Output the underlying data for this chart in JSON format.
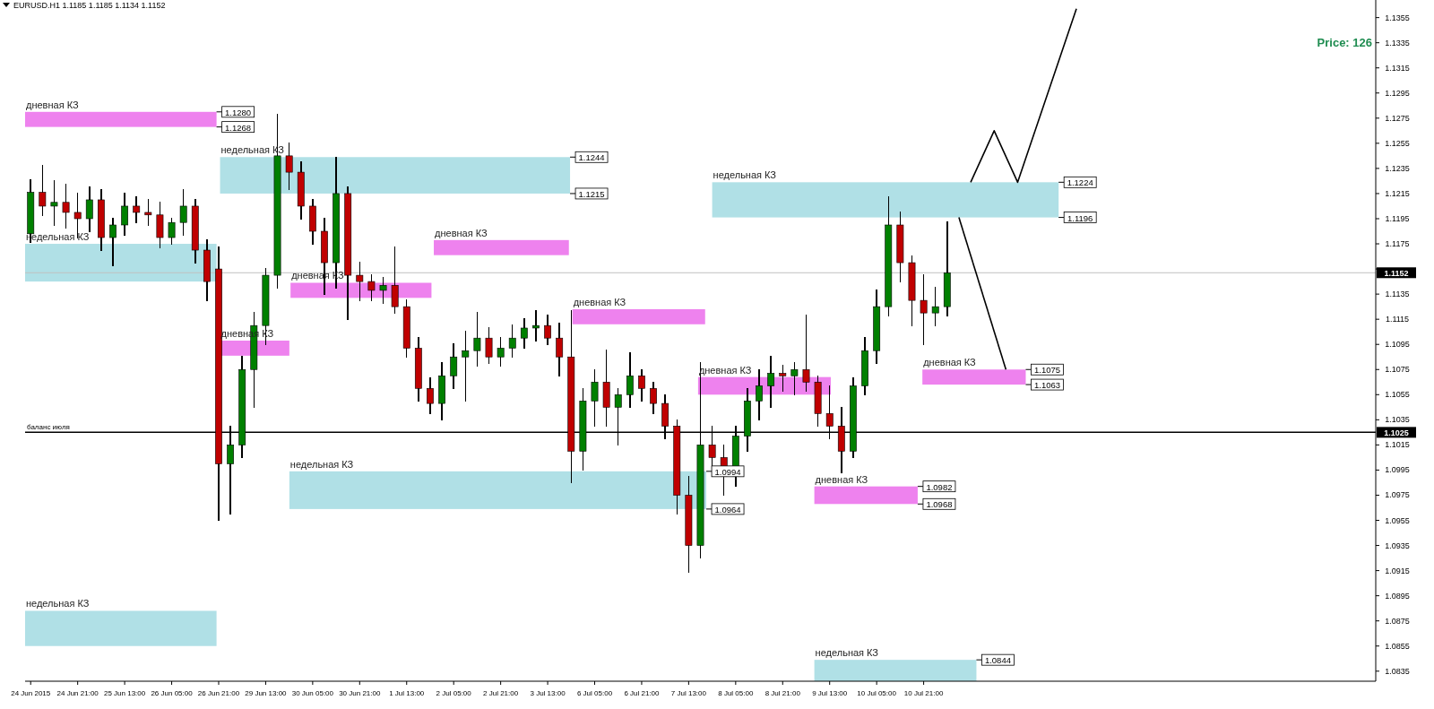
{
  "chart_data": {
    "type": "candlestick",
    "title": "EURUSD.H1 1.1185 1.1185 1.1134 1.1152",
    "annotations": [
      "Price: 126",
      "1.1152",
      "1.1025",
      "1.1280",
      "1.1268",
      "1.1244",
      "1.1215",
      "1.0994",
      "1.0964",
      "1.1224",
      "1.1196",
      "1.0982",
      "1.0968",
      "1.1075",
      "1.1063",
      "1.0844"
    ],
    "categories": [
      "24 Jun 2015",
      null,
      null,
      null,
      "24 Jun 21:00",
      null,
      null,
      null,
      "25 Jun 13:00",
      null,
      null,
      null,
      "26 Jun 05:00",
      null,
      null,
      null,
      "26 Jun 21:00",
      null,
      null,
      null,
      "29 Jun 13:00",
      null,
      null,
      null,
      "30 Jun 05:00",
      null,
      null,
      null,
      "30 Jun 21:00",
      null,
      null,
      null,
      "1 Jul 13:00",
      null,
      null,
      null,
      "2 Jul 05:00",
      null,
      null,
      null,
      "2 Jul 21:00",
      null,
      null,
      null,
      "3 Jul 13:00",
      null,
      null,
      null,
      "6 Jul 05:00",
      null,
      null,
      null,
      "6 Jul 21:00",
      null,
      null,
      null,
      "7 Jul 13:00",
      null,
      null,
      null,
      "8 Jul 05:00",
      null,
      null,
      null,
      "8 Jul 21:00",
      null,
      null,
      null,
      "9 Jul 13:00",
      null,
      null,
      null,
      "10 Jul 05:00",
      null,
      null,
      null,
      "10 Jul 21:00",
      null,
      null,
      null,
      null,
      null,
      null,
      null,
      null,
      null,
      null,
      null,
      null,
      null,
      null,
      null,
      null,
      null,
      null,
      null,
      null,
      null,
      null,
      null,
      null,
      null,
      null,
      null,
      null,
      null,
      null,
      null,
      null,
      null,
      null,
      null,
      null,
      null,
      null
    ],
    "colors": [
      "#008000",
      "#c00000",
      "#008000",
      "#c00000",
      "#c00000",
      "#008000",
      "#c00000",
      "#008000",
      "#008000",
      "#c00000",
      "#c00000",
      "#c00000",
      "#008000",
      "#008000",
      "#c00000",
      "#c00000",
      "#c00000",
      "#008000",
      "#008000",
      "#008000",
      "#008000",
      "#008000",
      "#c00000",
      "#c00000",
      "#c00000",
      "#c00000",
      "#008000",
      "#c00000",
      "#c00000",
      "#c00000",
      "#008000",
      "#c00000",
      "#c00000",
      "#c00000",
      "#c00000",
      "#008000",
      "#008000",
      "#008000",
      "#008000",
      "#c00000",
      "#008000",
      "#008000",
      "#008000",
      "#008000",
      "#c00000",
      "#c00000",
      "#c00000",
      "#008000",
      "#008000",
      "#c00000",
      "#008000",
      "#008000",
      "#c00000",
      "#c00000",
      "#c00000",
      "#c00000",
      "#c00000",
      "#008000",
      "#c00000",
      "#c00000",
      "#008000",
      "#008000",
      "#008000",
      "#008000",
      "#c00000",
      "#008000",
      "#c00000",
      "#c00000",
      "#c00000",
      "#c00000",
      "#008000",
      "#008000",
      "#008000",
      "#008000",
      "#c00000",
      "#c00000",
      "#c00000",
      "#008000",
      "#008000",
      null,
      null,
      null,
      null,
      null,
      null,
      null,
      null,
      null,
      null,
      null,
      null,
      null,
      null,
      null,
      null,
      null,
      null,
      null,
      null,
      null,
      null,
      null,
      null,
      null,
      null,
      null,
      null,
      null,
      null,
      null,
      null,
      null,
      null,
      null,
      null
    ],
    "ohlc": [
      [
        1.1183,
        1.1226,
        1.1176,
        1.1216
      ],
      [
        1.1216,
        1.1237,
        1.1198,
        1.1205
      ],
      [
        1.1205,
        1.1225,
        1.119,
        1.1208
      ],
      [
        1.1208,
        1.1222,
        1.1188,
        1.12
      ],
      [
        1.12,
        1.1215,
        1.118,
        1.1195
      ],
      [
        1.1195,
        1.122,
        1.1185,
        1.121
      ],
      [
        1.121,
        1.1218,
        1.117,
        1.118
      ],
      [
        1.118,
        1.1195,
        1.1158,
        1.119
      ],
      [
        1.119,
        1.1215,
        1.1182,
        1.1205
      ],
      [
        1.1205,
        1.1212,
        1.1192,
        1.12
      ],
      [
        1.12,
        1.121,
        1.119,
        1.1198
      ],
      [
        1.1198,
        1.1208,
        1.1172,
        1.118
      ],
      [
        1.118,
        1.1195,
        1.1175,
        1.1192
      ],
      [
        1.1192,
        1.1218,
        1.1182,
        1.1205
      ],
      [
        1.1205,
        1.121,
        1.116,
        1.117
      ],
      [
        1.117,
        1.1178,
        1.113,
        1.1145
      ],
      [
        1.1155,
        1.1172,
        1.0955,
        1.1
      ],
      [
        1.1,
        1.103,
        1.096,
        1.1015
      ],
      [
        1.1015,
        1.1085,
        1.1005,
        1.1075
      ],
      [
        1.1075,
        1.112,
        1.1045,
        1.111
      ],
      [
        1.111,
        1.1155,
        1.1095,
        1.115
      ],
      [
        1.115,
        1.1278,
        1.114,
        1.1245
      ],
      [
        1.1245,
        1.1255,
        1.1218,
        1.1232
      ],
      [
        1.1232,
        1.124,
        1.1195,
        1.1205
      ],
      [
        1.1205,
        1.121,
        1.1175,
        1.1185
      ],
      [
        1.1185,
        1.1195,
        1.1135,
        1.116
      ],
      [
        1.116,
        1.1244,
        1.114,
        1.1215
      ],
      [
        1.1215,
        1.122,
        1.1115,
        1.115
      ],
      [
        1.115,
        1.116,
        1.113,
        1.1145
      ],
      [
        1.1145,
        1.115,
        1.113,
        1.1138
      ],
      [
        1.1138,
        1.1148,
        1.1128,
        1.1142
      ],
      [
        1.1142,
        1.1172,
        1.112,
        1.1125
      ],
      [
        1.1125,
        1.113,
        1.1085,
        1.1092
      ],
      [
        1.1092,
        1.11,
        1.105,
        1.106
      ],
      [
        1.106,
        1.1068,
        1.104,
        1.1048
      ],
      [
        1.1048,
        1.108,
        1.1035,
        1.107
      ],
      [
        1.107,
        1.1095,
        1.106,
        1.1085
      ],
      [
        1.1085,
        1.1105,
        1.105,
        1.109
      ],
      [
        1.109,
        1.112,
        1.1078,
        1.11
      ],
      [
        1.11,
        1.1108,
        1.108,
        1.1085
      ],
      [
        1.1085,
        1.11,
        1.1078,
        1.1092
      ],
      [
        1.1092,
        1.111,
        1.1085,
        1.11
      ],
      [
        1.11,
        1.1115,
        1.1092,
        1.1108
      ],
      [
        1.1108,
        1.1122,
        1.1098,
        1.111
      ],
      [
        1.111,
        1.1118,
        1.1095,
        1.11
      ],
      [
        1.11,
        1.1112,
        1.107,
        1.1085
      ],
      [
        1.1085,
        1.1122,
        1.0985,
        1.101
      ],
      [
        1.101,
        1.106,
        1.0995,
        1.105
      ],
      [
        1.105,
        1.1075,
        1.103,
        1.1065
      ],
      [
        1.1065,
        1.109,
        1.103,
        1.1045
      ],
      [
        1.1045,
        1.106,
        1.1015,
        1.1055
      ],
      [
        1.1055,
        1.1088,
        1.1045,
        1.107
      ],
      [
        1.107,
        1.1075,
        1.105,
        1.106
      ],
      [
        1.106,
        1.1065,
        1.104,
        1.1048
      ],
      [
        1.1048,
        1.1055,
        1.102,
        1.103
      ],
      [
        1.103,
        1.1035,
        1.096,
        1.0975
      ],
      [
        1.0975,
        1.099,
        1.0914,
        1.0935
      ],
      [
        1.0935,
        1.108,
        1.0925,
        1.1015
      ],
      [
        1.1015,
        1.103,
        1.099,
        1.1005
      ],
      [
        1.1005,
        1.1015,
        1.0975,
        1.099
      ],
      [
        1.099,
        1.103,
        1.0982,
        1.1022
      ],
      [
        1.1022,
        1.106,
        1.101,
        1.105
      ],
      [
        1.105,
        1.1075,
        1.1035,
        1.1062
      ],
      [
        1.1062,
        1.1085,
        1.1045,
        1.1072
      ],
      [
        1.1072,
        1.1078,
        1.1058,
        1.107
      ],
      [
        1.107,
        1.108,
        1.1055,
        1.1075
      ],
      [
        1.1075,
        1.1118,
        1.1058,
        1.1065
      ],
      [
        1.1065,
        1.107,
        1.103,
        1.104
      ],
      [
        1.104,
        1.1062,
        1.102,
        1.103
      ],
      [
        1.103,
        1.1045,
        1.0993,
        1.101
      ],
      [
        1.101,
        1.1068,
        1.1005,
        1.1062
      ],
      [
        1.1062,
        1.11,
        1.1055,
        1.109
      ],
      [
        1.109,
        1.1138,
        1.108,
        1.1125
      ],
      [
        1.1125,
        1.1212,
        1.1118,
        1.119
      ],
      [
        1.119,
        1.12,
        1.1145,
        1.116
      ],
      [
        1.116,
        1.1165,
        1.111,
        1.113
      ],
      [
        1.113,
        1.115,
        1.1095,
        1.112
      ],
      [
        1.112,
        1.114,
        1.111,
        1.1125
      ],
      [
        1.1125,
        1.1192,
        1.1118,
        1.1152
      ],
      null,
      null,
      null,
      null,
      null,
      null,
      null,
      null,
      null,
      null,
      null,
      null,
      null,
      null,
      null,
      null,
      null,
      null,
      null,
      null,
      null,
      null,
      null,
      null,
      null,
      null,
      null,
      null,
      null,
      null,
      null,
      null,
      null,
      null,
      null,
      null
    ],
    "series": [
      {
        "type": "line",
        "color": "#000000",
        "values": [
          null,
          null,
          null,
          null,
          null,
          null,
          null,
          null,
          null,
          null,
          null,
          null,
          null,
          null,
          null,
          null,
          null,
          null,
          null,
          null,
          null,
          null,
          null,
          null,
          null,
          null,
          null,
          null,
          null,
          null,
          null,
          null,
          null,
          null,
          null,
          null,
          null,
          null,
          null,
          null,
          null,
          null,
          null,
          null,
          null,
          null,
          null,
          null,
          null,
          null,
          null,
          null,
          null,
          null,
          null,
          null,
          null,
          null,
          null,
          null,
          null,
          null,
          null,
          null,
          null,
          null,
          null,
          null,
          null,
          null,
          null,
          null,
          null,
          null,
          null,
          null,
          null,
          null,
          null,
          1.1196,
          null,
          null,
          null,
          1.1075,
          null,
          null,
          null,
          null,
          null,
          null,
          null,
          null,
          null,
          null,
          null,
          null,
          null,
          null,
          null,
          null,
          null,
          null,
          null,
          null,
          null,
          null,
          null,
          null,
          null,
          null,
          null,
          null,
          null,
          null,
          null
        ]
      },
      {
        "type": "line",
        "color": "#000000",
        "values": [
          null,
          null,
          null,
          null,
          null,
          null,
          null,
          null,
          null,
          null,
          null,
          null,
          null,
          null,
          null,
          null,
          null,
          null,
          null,
          null,
          null,
          null,
          null,
          null,
          null,
          null,
          null,
          null,
          null,
          null,
          null,
          null,
          null,
          null,
          null,
          null,
          null,
          null,
          null,
          null,
          null,
          null,
          null,
          null,
          null,
          null,
          null,
          null,
          null,
          null,
          null,
          null,
          null,
          null,
          null,
          null,
          null,
          null,
          null,
          null,
          null,
          null,
          null,
          null,
          null,
          null,
          null,
          null,
          null,
          null,
          null,
          null,
          null,
          null,
          null,
          null,
          null,
          null,
          null,
          null,
          1.1224,
          null,
          1.1265,
          null,
          1.1224,
          null,
          null,
          null,
          null,
          1.1362,
          null,
          null,
          null,
          null,
          null,
          null,
          null,
          null,
          null,
          null,
          null,
          null,
          null,
          null,
          null,
          null,
          null,
          null,
          null,
          null,
          null,
          null,
          null,
          null,
          null
        ]
      }
    ],
    "ylim": [
      1.0827,
      1.1369
    ],
    "yticks": [
      1.0835,
      1.0855,
      1.0875,
      1.0895,
      1.0915,
      1.0935,
      1.0955,
      1.0975,
      1.0995,
      1.1015,
      1.1035,
      1.1055,
      1.1075,
      1.1095,
      1.1115,
      1.1135,
      {
        "value": 1.1155,
        "label": null
      },
      1.1175,
      1.1195,
      1.1215,
      1.1235,
      1.1255,
      1.1275,
      1.1295,
      1.1315,
      1.1335,
      1.1355
    ],
    "ref_lines": [
      {
        "axis": "y",
        "value": 1.1025,
        "label": "баланс июля",
        "color": "#000000"
      },
      {
        "axis": "y",
        "value": 1.1152,
        "color": "#c0c0c0"
      }
    ],
    "bands": [
      {
        "axis": "y",
        "from": 1.1268,
        "to": 1.128,
        "label": "дневная КЗ",
        "color": "#ee82ee"
      },
      {
        "axis": "y",
        "from": 1.1145,
        "to": 1.1175,
        "label": "недельная КЗ",
        "color": "#b0e0e6"
      },
      {
        "axis": "y",
        "from": 1.1215,
        "to": 1.1244,
        "label": "недельная КЗ",
        "color": "#b0e0e6"
      },
      {
        "axis": "y",
        "from": 1.1086,
        "to": 1.1098,
        "label": "дневная КЗ",
        "color": "#ee82ee"
      },
      {
        "axis": "y",
        "from": 1.1132,
        "to": 1.1144,
        "label": "дневная КЗ",
        "color": "#ee82ee"
      },
      {
        "axis": "y",
        "from": 1.1166,
        "to": 1.1178,
        "label": "дневная КЗ",
        "color": "#ee82ee"
      },
      {
        "axis": "y",
        "from": 1.0964,
        "to": 1.0994,
        "label": "недельная КЗ",
        "color": "#b0e0e6"
      },
      {
        "axis": "y",
        "from": 1.1111,
        "to": 1.1123,
        "label": "дневная КЗ",
        "color": "#ee82ee"
      },
      {
        "axis": "y",
        "from": 1.1196,
        "to": 1.1224,
        "label": "недельная КЗ",
        "color": "#b0e0e6"
      },
      {
        "axis": "y",
        "from": 1.1055,
        "to": 1.1069,
        "label": "дневная КЗ",
        "color": "#ee82ee"
      },
      {
        "axis": "y",
        "from": 1.0968,
        "to": 1.0982,
        "label": "дневная КЗ",
        "color": "#ee82ee"
      },
      {
        "axis": "y",
        "from": 1.1063,
        "to": 1.1075,
        "label": "дневная КЗ",
        "color": "#ee82ee"
      },
      {
        "axis": "y",
        "from": 1.0855,
        "to": 1.0883,
        "label": "недельная КЗ",
        "color": "#b0e0e6"
      },
      {
        "axis": "y",
        "from": 1.0827,
        "to": 1.0844,
        "label": "недельная КЗ",
        "color": "#b0e0e6"
      }
    ]
  }
}
